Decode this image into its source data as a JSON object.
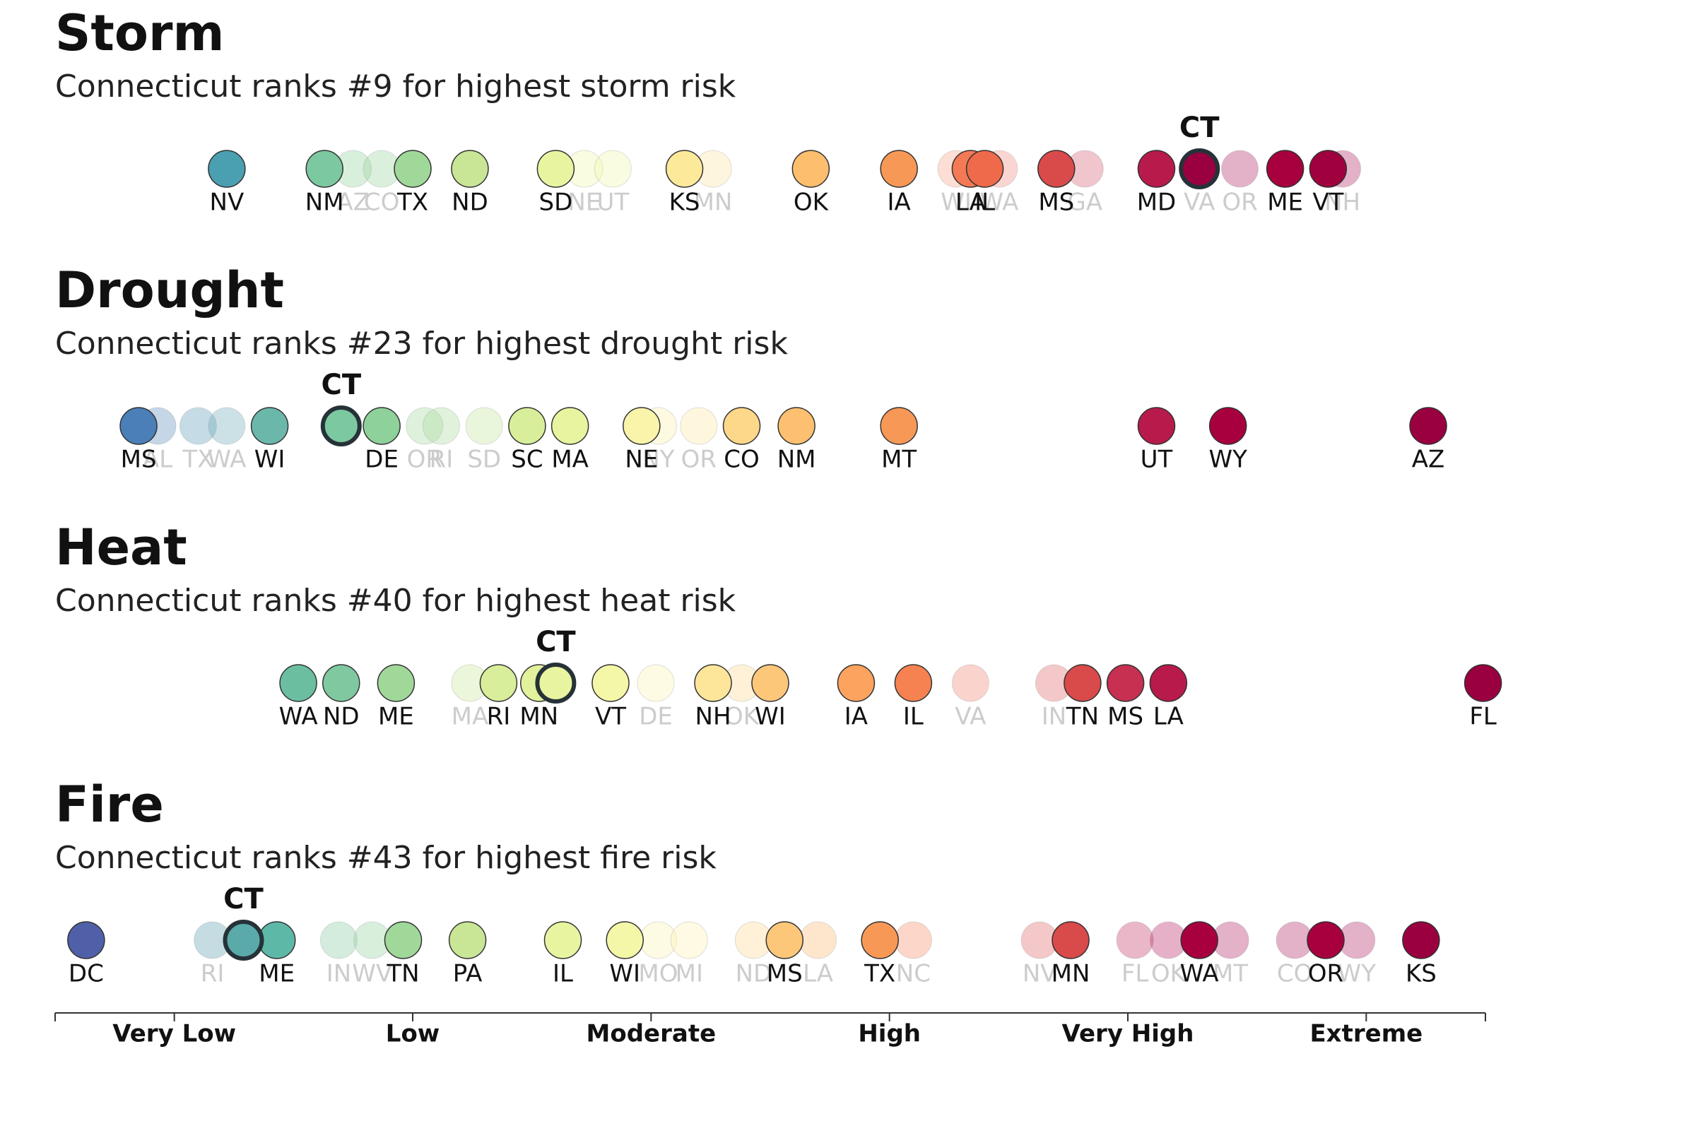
{
  "chart_data": [
    {
      "type": "strip",
      "title": "Storm",
      "subtitle": "Connecticut ranks #9 for highest storm risk",
      "xlim": [
        0,
        6
      ],
      "points": [
        {
          "label": "NV",
          "value": 0.72,
          "color": "#4a9fb0"
        },
        {
          "label": "NM",
          "value": 1.13,
          "color": "#7cc8a0"
        },
        {
          "label": "AZ",
          "value": 1.25,
          "color": "#8fd19a",
          "faded": true
        },
        {
          "label": "CO",
          "value": 1.37,
          "color": "#98d49a",
          "faded": true
        },
        {
          "label": "TX",
          "value": 1.5,
          "color": "#a0d89a"
        },
        {
          "label": "ND",
          "value": 1.74,
          "color": "#c8e696"
        },
        {
          "label": "SD",
          "value": 2.1,
          "color": "#e8f4a0"
        },
        {
          "label": "NE",
          "value": 2.22,
          "color": "#eef6a6",
          "faded": true
        },
        {
          "label": "UT",
          "value": 2.34,
          "color": "#f2f7a8",
          "faded": true
        },
        {
          "label": "KS",
          "value": 2.64,
          "color": "#fce99a"
        },
        {
          "label": "MN",
          "value": 2.76,
          "color": "#fce2a0",
          "faded": true
        },
        {
          "label": "OK",
          "value": 3.17,
          "color": "#fdbe6e"
        },
        {
          "label": "IA",
          "value": 3.54,
          "color": "#f89857"
        },
        {
          "label": "WI",
          "value": 3.78,
          "color": "#f6a088",
          "faded": true
        },
        {
          "label": "LA",
          "value": 3.84,
          "color": "#f37a55"
        },
        {
          "label": "IL",
          "value": 3.9,
          "color": "#ee6a4a"
        },
        {
          "label": "WA",
          "value": 3.96,
          "color": "#f08a80",
          "faded": true
        },
        {
          "label": "MS",
          "value": 4.2,
          "color": "#d94a4a"
        },
        {
          "label": "GA",
          "value": 4.32,
          "color": "#d45a6a",
          "faded": true
        },
        {
          "label": "MD",
          "value": 4.62,
          "color": "#b81a4c"
        },
        {
          "label": "VA",
          "value": 4.8,
          "color": "#b03060",
          "faded": true
        },
        {
          "label": "CT",
          "value": 4.8,
          "color": "#9a0040",
          "highlight": true
        },
        {
          "label": "OR",
          "value": 4.97,
          "color": "#b02060",
          "faded": true
        },
        {
          "label": "ME",
          "value": 5.16,
          "color": "#a8003f"
        },
        {
          "label": "VT",
          "value": 5.34,
          "color": "#a0003e"
        },
        {
          "label": "NH",
          "value": 5.4,
          "color": "#b02060",
          "faded": true
        }
      ]
    },
    {
      "type": "strip",
      "title": "Drought",
      "subtitle": "Connecticut ranks #23 for highest drought risk",
      "xlim": [
        0,
        6
      ],
      "points": [
        {
          "label": "MS",
          "value": 0.35,
          "color": "#4a7fb8"
        },
        {
          "label": "AL",
          "value": 0.43,
          "color": "#5a8ab8",
          "faded": true
        },
        {
          "label": "TX",
          "value": 0.6,
          "color": "#5a9ab8",
          "faded": true
        },
        {
          "label": "WA",
          "value": 0.72,
          "color": "#6aa8b8",
          "faded": true
        },
        {
          "label": "WI",
          "value": 0.9,
          "color": "#6bb8ab"
        },
        {
          "label": "CT",
          "value": 1.2,
          "color": "#7cc8a0",
          "highlight": true
        },
        {
          "label": "DE",
          "value": 1.37,
          "color": "#8fd19a"
        },
        {
          "label": "OR",
          "value": 1.55,
          "color": "#a0d89a",
          "faded": true
        },
        {
          "label": "RI",
          "value": 1.62,
          "color": "#a8db9a",
          "faded": true
        },
        {
          "label": "SD",
          "value": 1.8,
          "color": "#c0e49a",
          "faded": true
        },
        {
          "label": "SC",
          "value": 1.98,
          "color": "#d8ee9a"
        },
        {
          "label": "MA",
          "value": 2.16,
          "color": "#e8f4a0"
        },
        {
          "label": "NE",
          "value": 2.46,
          "color": "#f9f4aa"
        },
        {
          "label": "NY",
          "value": 2.53,
          "color": "#f9f0aa",
          "faded": true
        },
        {
          "label": "OR",
          "value": 2.7,
          "color": "#fce8a0",
          "faded": true
        },
        {
          "label": "CO",
          "value": 2.88,
          "color": "#fdd88a"
        },
        {
          "label": "NM",
          "value": 3.11,
          "color": "#fcc070"
        },
        {
          "label": "MT",
          "value": 3.54,
          "color": "#f89857"
        },
        {
          "label": "UT",
          "value": 4.62,
          "color": "#b81a4c"
        },
        {
          "label": "WY",
          "value": 4.92,
          "color": "#a8003f"
        },
        {
          "label": "AZ",
          "value": 5.76,
          "color": "#9a0040"
        }
      ]
    },
    {
      "type": "strip",
      "title": "Heat",
      "subtitle": "Connecticut ranks #40 for highest heat risk",
      "xlim": [
        0,
        6
      ],
      "points": [
        {
          "label": "WA",
          "value": 1.02,
          "color": "#6bbfa0"
        },
        {
          "label": "ND",
          "value": 1.2,
          "color": "#80c9a0"
        },
        {
          "label": "ME",
          "value": 1.43,
          "color": "#a0d89a"
        },
        {
          "label": "MA",
          "value": 1.74,
          "color": "#c8e696",
          "faded": true
        },
        {
          "label": "RI",
          "value": 1.86,
          "color": "#d8ee9a"
        },
        {
          "label": "MN",
          "value": 2.03,
          "color": "#e2f19c"
        },
        {
          "label": "CT",
          "value": 2.1,
          "color": "#e8f4a0",
          "highlight": true
        },
        {
          "label": "VT",
          "value": 2.33,
          "color": "#f5f7a8"
        },
        {
          "label": "DE",
          "value": 2.52,
          "color": "#f8f4b0",
          "faded": true
        },
        {
          "label": "NH",
          "value": 2.76,
          "color": "#fde59a"
        },
        {
          "label": "OK",
          "value": 2.88,
          "color": "#fdd890",
          "faded": true
        },
        {
          "label": "WI",
          "value": 3.0,
          "color": "#fdc77a"
        },
        {
          "label": "IA",
          "value": 3.36,
          "color": "#fba35f"
        },
        {
          "label": "IL",
          "value": 3.6,
          "color": "#f58250"
        },
        {
          "label": "VA",
          "value": 3.84,
          "color": "#f08070",
          "faded": true
        },
        {
          "label": "IN",
          "value": 4.19,
          "color": "#e06060",
          "faded": true
        },
        {
          "label": "TN",
          "value": 4.31,
          "color": "#d94a4a"
        },
        {
          "label": "MS",
          "value": 4.49,
          "color": "#c73050"
        },
        {
          "label": "LA",
          "value": 4.67,
          "color": "#b81a4c"
        },
        {
          "label": "FL",
          "value": 5.99,
          "color": "#9a0040"
        }
      ]
    },
    {
      "type": "strip",
      "title": "Fire",
      "subtitle": "Connecticut ranks #43 for highest fire risk",
      "xlim": [
        0,
        6
      ],
      "xticks": [
        {
          "value": 0.5,
          "label": "Very Low"
        },
        {
          "value": 1.5,
          "label": "Low"
        },
        {
          "value": 2.5,
          "label": "Moderate"
        },
        {
          "value": 3.5,
          "label": "High"
        },
        {
          "value": 4.5,
          "label": "Very High"
        },
        {
          "value": 5.5,
          "label": "Extreme"
        }
      ],
      "points": [
        {
          "label": "DC",
          "value": 0.13,
          "color": "#5060a8"
        },
        {
          "label": "RI",
          "value": 0.66,
          "color": "#5a9ab0",
          "faded": true
        },
        {
          "label": "CT",
          "value": 0.79,
          "color": "#5aaaaa",
          "highlight": true
        },
        {
          "label": "ME",
          "value": 0.93,
          "color": "#5eb8a8"
        },
        {
          "label": "IN",
          "value": 1.19,
          "color": "#80c9a0",
          "faded": true
        },
        {
          "label": "WV",
          "value": 1.33,
          "color": "#90d09a",
          "faded": true
        },
        {
          "label": "TN",
          "value": 1.46,
          "color": "#a0d89a"
        },
        {
          "label": "PA",
          "value": 1.73,
          "color": "#c8e696"
        },
        {
          "label": "IL",
          "value": 2.13,
          "color": "#e8f4a0"
        },
        {
          "label": "WI",
          "value": 2.39,
          "color": "#f5f7a8"
        },
        {
          "label": "MO",
          "value": 2.53,
          "color": "#f8f4b0",
          "faded": true
        },
        {
          "label": "MI",
          "value": 2.66,
          "color": "#fbf0b0",
          "faded": true
        },
        {
          "label": "ND",
          "value": 2.93,
          "color": "#fdd890",
          "faded": true
        },
        {
          "label": "MS",
          "value": 3.06,
          "color": "#fdc77a"
        },
        {
          "label": "LA",
          "value": 3.2,
          "color": "#fcb870",
          "faded": true
        },
        {
          "label": "TX",
          "value": 3.46,
          "color": "#f89857"
        },
        {
          "label": "NC",
          "value": 3.6,
          "color": "#f58a60",
          "faded": true
        },
        {
          "label": "NV",
          "value": 4.13,
          "color": "#e06060",
          "faded": true
        },
        {
          "label": "MN",
          "value": 4.26,
          "color": "#d94a4a"
        },
        {
          "label": "FL",
          "value": 4.53,
          "color": "#c03060",
          "faded": true
        },
        {
          "label": "OK",
          "value": 4.67,
          "color": "#b82060",
          "faded": true
        },
        {
          "label": "WA",
          "value": 4.8,
          "color": "#a8003f"
        },
        {
          "label": "MT",
          "value": 4.93,
          "color": "#b02060",
          "faded": true
        },
        {
          "label": "CO",
          "value": 5.2,
          "color": "#b02060",
          "faded": true
        },
        {
          "label": "OR",
          "value": 5.33,
          "color": "#a8003f"
        },
        {
          "label": "WY",
          "value": 5.46,
          "color": "#b02060",
          "faded": true
        },
        {
          "label": "KS",
          "value": 5.73,
          "color": "#9a0040"
        }
      ]
    }
  ]
}
